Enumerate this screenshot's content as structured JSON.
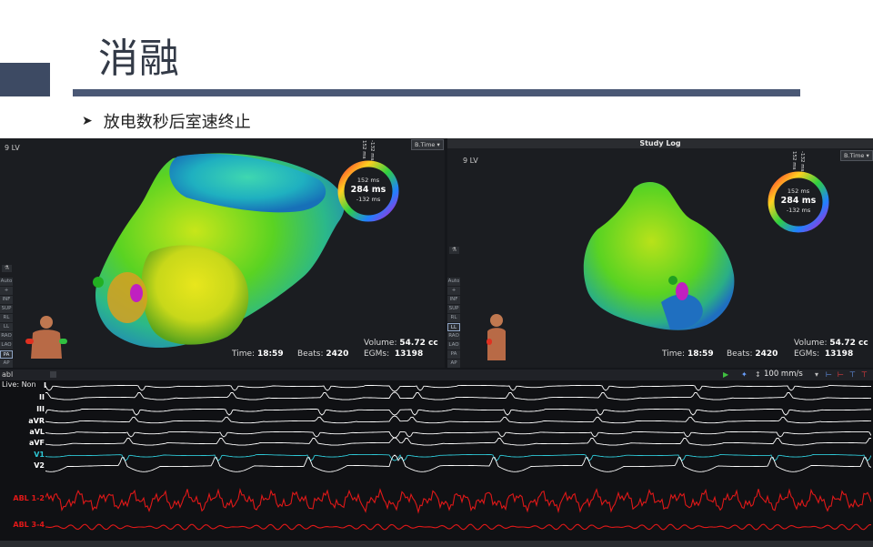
{
  "slide": {
    "title": "消融",
    "bullet": "放电数秒后室速终止"
  },
  "left_pane": {
    "label": "9 LV",
    "selector": "B.Time",
    "ring": {
      "top": "152 ms",
      "center": "284 ms",
      "bottom": "-132 ms",
      "side_a": "152 ms",
      "side_b": "-132 ms"
    },
    "orientations": [
      "Auto",
      "+",
      "INF",
      "SUP",
      "RL",
      "LL",
      "RAO",
      "LAO",
      "PA",
      "AP"
    ],
    "active_orientation": "PA",
    "time_label": "Time:",
    "time_value": "18:59",
    "beats_label": "Beats:",
    "beats_value": "2420",
    "volume_label": "Volume:",
    "volume_value": "54.72 cc",
    "egms_label": "EGMs:",
    "egms_value": "13198"
  },
  "right_pane": {
    "title_bar": "Study Log",
    "label": "9 LV",
    "selector": "B.Time",
    "ring": {
      "top": "152 ms",
      "center": "284 ms",
      "bottom": "-132 ms",
      "side_a": "152 ms",
      "side_b": "-132 ms"
    },
    "orientations": [
      "Auto",
      "+",
      "INF",
      "SUP",
      "RL",
      "LL",
      "RAO",
      "LAO",
      "PA",
      "AP"
    ],
    "active_orientation": "LL",
    "time_label": "Time:",
    "time_value": "18:59",
    "beats_label": "Beats:",
    "beats_value": "2420",
    "volume_label": "Volume:",
    "volume_value": "54.72 cc",
    "egms_label": "EGMs:",
    "egms_value": "13198"
  },
  "ecg": {
    "source": "abl",
    "live": "Live: Non",
    "speed": "100 mm/s",
    "channels": [
      {
        "name": "I",
        "color": "#ffffff"
      },
      {
        "name": "II",
        "color": "#ffffff"
      },
      {
        "name": "III",
        "color": "#ffffff"
      },
      {
        "name": "aVR",
        "color": "#ffffff"
      },
      {
        "name": "aVL",
        "color": "#ffffff"
      },
      {
        "name": "aVF",
        "color": "#ffffff"
      },
      {
        "name": "V1",
        "color": "#2ec8d6"
      },
      {
        "name": "V2",
        "color": "#ffffff"
      },
      {
        "name": "ABL 1-2",
        "color": "#e01818"
      },
      {
        "name": "ABL 3-4",
        "color": "#e01818"
      }
    ]
  },
  "colors": {
    "slide_accent": "#3d4a63",
    "rule": "#4a5875",
    "abl_trace": "#e01818",
    "v1_trace": "#2ec8d6"
  }
}
